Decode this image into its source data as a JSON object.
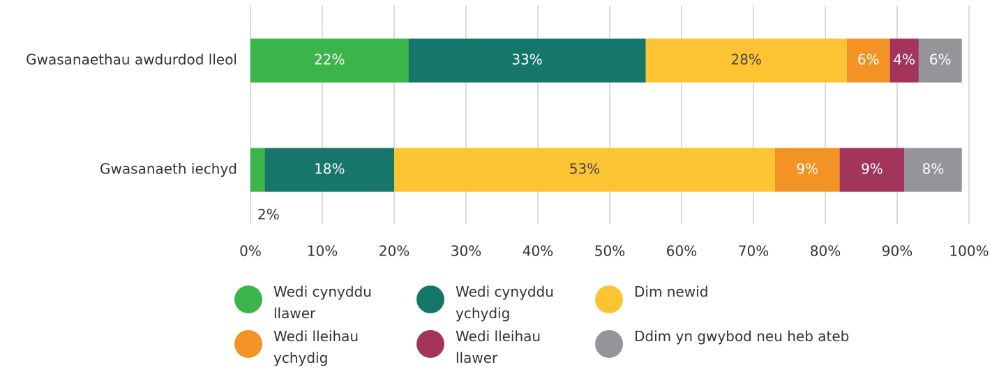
{
  "chart_data": {
    "type": "stacked-bar-horizontal",
    "categories": [
      "Gwasanaethau awdurdod lleol",
      "Gwasanaeth iechyd"
    ],
    "series": [
      {
        "name": "Wedi cynyddu llawer",
        "color": "#3bb44a",
        "values": [
          22,
          2
        ],
        "value_labels": [
          "22%",
          "2%"
        ]
      },
      {
        "name": "Wedi cynyddu ychydig",
        "color": "#17766a",
        "values": [
          33,
          18
        ],
        "value_labels": [
          "33%",
          "18%"
        ]
      },
      {
        "name": "Dim newid",
        "color": "#fcc433",
        "values": [
          28,
          53
        ],
        "value_labels": [
          "28%",
          "53%"
        ]
      },
      {
        "name": "Wedi lleihau ychydig",
        "color": "#f39325",
        "values": [
          6,
          9
        ],
        "value_labels": [
          "6%",
          "9%"
        ]
      },
      {
        "name": "Wedi lleihau llawer",
        "color": "#a3345c",
        "values": [
          4,
          9
        ],
        "value_labels": [
          "4%",
          "9%"
        ]
      },
      {
        "name": "Ddim yn gwybod neu heb ateb",
        "color": "#939598",
        "values": [
          6,
          8
        ],
        "value_labels": [
          "6%",
          "8%"
        ]
      }
    ],
    "xlim": [
      0,
      100
    ],
    "xticks": [
      {
        "value": 0,
        "label": "0%"
      },
      {
        "value": 10,
        "label": "10%"
      },
      {
        "value": 20,
        "label": "20%"
      },
      {
        "value": 30,
        "label": "30%"
      },
      {
        "value": 40,
        "label": "40%"
      },
      {
        "value": 50,
        "label": "50%"
      },
      {
        "value": 60,
        "label": "60%"
      },
      {
        "value": 70,
        "label": "70%"
      },
      {
        "value": 80,
        "label": "80%"
      },
      {
        "value": 90,
        "label": "90%"
      },
      {
        "value": 100,
        "label": "100%"
      }
    ],
    "grid": true
  }
}
